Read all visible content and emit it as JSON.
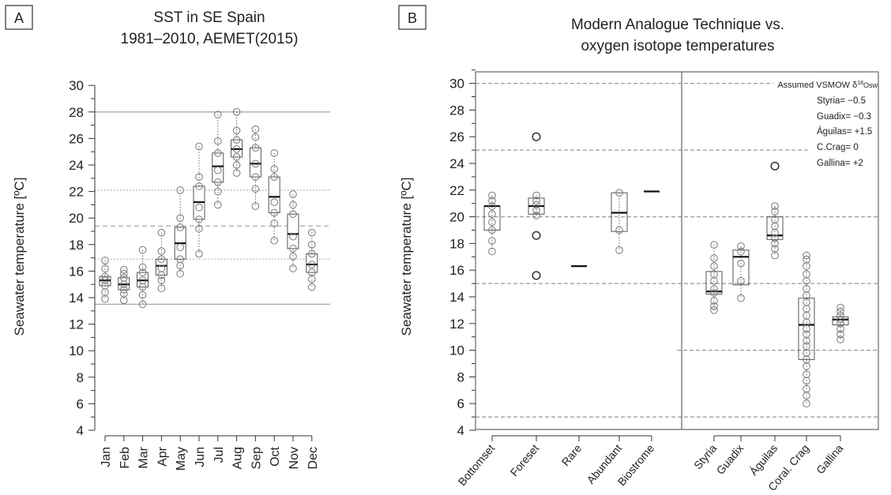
{
  "panels": {
    "a": {
      "label": "A"
    },
    "b": {
      "label": "B"
    }
  },
  "chart_data": [
    {
      "type": "box",
      "title": "SST in SE Spain",
      "subtitle": "1981–2010, AEMET(2015)",
      "ylabel": "Seawater temperature [ºC]",
      "ylim": [
        4,
        30
      ],
      "yticks": [
        "4",
        "6",
        "8",
        "10",
        "12",
        "14",
        "16",
        "18",
        "20",
        "22",
        "24",
        "26",
        "28",
        "30"
      ],
      "categories": [
        "Jan",
        "Feb",
        "Mar",
        "Apr",
        "May",
        "Jun",
        "Jul",
        "Aug",
        "Sep",
        "Oct",
        "Nov",
        "Dec"
      ],
      "reference_lines": [
        {
          "y": 13.5,
          "style": "solid"
        },
        {
          "y": 16.9,
          "style": "dotted"
        },
        {
          "y": 19.4,
          "style": "dashed"
        },
        {
          "y": 22.1,
          "style": "dotted"
        },
        {
          "y": 28.0,
          "style": "solid"
        }
      ],
      "boxes": [
        {
          "q1": 14.9,
          "median": 15.3,
          "q3": 15.6,
          "min": 13.9,
          "max": 16.8,
          "points": [
            13.9,
            14.4,
            14.9,
            15.3,
            15.6,
            16.2,
            16.8
          ]
        },
        {
          "q1": 14.6,
          "median": 15.0,
          "q3": 15.5,
          "min": 13.8,
          "max": 16.1,
          "points": [
            13.8,
            14.3,
            14.6,
            15.0,
            15.5,
            15.8,
            16.1
          ]
        },
        {
          "q1": 14.8,
          "median": 15.3,
          "q3": 15.9,
          "min": 13.5,
          "max": 17.6,
          "points": [
            13.5,
            14.2,
            14.8,
            15.3,
            15.9,
            16.3,
            17.6
          ]
        },
        {
          "q1": 15.7,
          "median": 16.4,
          "q3": 16.9,
          "min": 14.7,
          "max": 18.9,
          "points": [
            14.7,
            15.3,
            15.7,
            16.2,
            16.9,
            17.5,
            18.9
          ]
        },
        {
          "q1": 16.9,
          "median": 18.1,
          "q3": 19.3,
          "min": 15.8,
          "max": 22.1,
          "points": [
            15.8,
            16.4,
            16.9,
            17.8,
            19.3,
            20.0,
            22.1
          ]
        },
        {
          "q1": 19.9,
          "median": 21.2,
          "q3": 22.4,
          "min": 17.3,
          "max": 25.4,
          "points": [
            17.3,
            19.2,
            19.9,
            20.8,
            22.4,
            23.1,
            25.4
          ]
        },
        {
          "q1": 22.7,
          "median": 23.9,
          "q3": 24.9,
          "min": 21.0,
          "max": 27.8,
          "points": [
            21.0,
            22.0,
            22.7,
            23.6,
            24.9,
            25.8,
            27.8
          ]
        },
        {
          "q1": 24.6,
          "median": 25.2,
          "q3": 25.9,
          "min": 23.4,
          "max": 28.0,
          "points": [
            23.4,
            24.0,
            24.6,
            25.2,
            25.9,
            26.6,
            28.0
          ]
        },
        {
          "q1": 23.1,
          "median": 24.1,
          "q3": 25.3,
          "min": 20.9,
          "max": 26.7,
          "points": [
            20.9,
            22.2,
            23.1,
            24.1,
            25.3,
            26.1,
            26.7
          ]
        },
        {
          "q1": 20.4,
          "median": 21.6,
          "q3": 23.1,
          "min": 18.3,
          "max": 24.9,
          "points": [
            18.3,
            19.6,
            20.4,
            21.2,
            23.1,
            23.7,
            24.9
          ]
        },
        {
          "q1": 17.7,
          "median": 18.8,
          "q3": 20.3,
          "min": 16.2,
          "max": 21.8,
          "points": [
            16.2,
            17.1,
            17.7,
            18.6,
            20.3,
            21.0,
            21.8
          ]
        },
        {
          "q1": 15.9,
          "median": 16.5,
          "q3": 17.3,
          "min": 14.8,
          "max": 18.9,
          "points": [
            14.8,
            15.4,
            15.9,
            16.5,
            17.3,
            18.0,
            18.9
          ]
        }
      ]
    },
    {
      "type": "box",
      "title": "Modern Analogue Technique vs.",
      "subtitle": "oxygen isotope temperatures",
      "ylabel": "Seawater temperature [ºC]",
      "ylim": [
        4,
        31
      ],
      "yticks": [
        "4",
        "6",
        "8",
        "10",
        "12",
        "14",
        "16",
        "18",
        "20",
        "22",
        "24",
        "26",
        "28",
        "30"
      ],
      "categories": [
        "Bottomset",
        "Foreset",
        "Rare",
        "Abundant",
        "Biostrome",
        "Styria",
        "Guadix",
        "Águilas",
        "Coral. Crag",
        "Gallina"
      ],
      "reference_lines": [
        {
          "y": 5,
          "style": "dashed",
          "x_from": 0,
          "x_to": 1
        },
        {
          "y": 10,
          "style": "dashed",
          "x_from": 0.5,
          "x_to": 1
        },
        {
          "y": 15,
          "style": "dashed",
          "x_from": 0,
          "x_to": 1
        },
        {
          "y": 20,
          "style": "dashed",
          "x_from": 0,
          "x_to": 1
        },
        {
          "y": 25,
          "style": "dashed",
          "x_from": 0,
          "x_to": 0.825
        },
        {
          "y": 30,
          "style": "dashed",
          "x_from": 0,
          "x_to": 0.74
        }
      ],
      "divider_after_index": 4,
      "boxes": [
        {
          "q1": 19.0,
          "median": 20.8,
          "q3": 20.8,
          "min": 17.4,
          "max": 21.6,
          "points": [
            17.4,
            18.2,
            19.0,
            19.6,
            20.2,
            20.8,
            21.2,
            21.6
          ],
          "outliers": []
        },
        {
          "q1": 20.2,
          "median": 20.8,
          "q3": 21.4,
          "min": 20.0,
          "max": 21.6,
          "points": [
            20.1,
            20.5,
            20.9,
            21.2,
            21.6
          ],
          "outliers": [
            26.0,
            18.6,
            15.6
          ]
        },
        {
          "q1": 16.3,
          "median": 16.3,
          "q3": 16.3,
          "min": 16.3,
          "max": 16.3,
          "points": [],
          "outliers": []
        },
        {
          "q1": 18.9,
          "median": 20.3,
          "q3": 21.8,
          "min": 17.5,
          "max": 21.8,
          "points": [
            17.5,
            19.0,
            21.8
          ],
          "outliers": []
        },
        {
          "q1": 21.9,
          "median": 21.9,
          "q3": 21.9,
          "min": 21.9,
          "max": 21.9,
          "points": [],
          "outliers": []
        },
        {
          "q1": 14.2,
          "median": 14.4,
          "q3": 15.9,
          "min": 13.0,
          "max": 17.9,
          "points": [
            13.0,
            13.3,
            13.7,
            14.3,
            14.6,
            15.2,
            15.7,
            16.3,
            16.9,
            17.9
          ],
          "outliers": []
        },
        {
          "q1": 14.9,
          "median": 17.0,
          "q3": 17.5,
          "min": 13.9,
          "max": 17.8,
          "points": [
            13.9,
            15.2,
            16.5,
            17.4,
            17.8
          ],
          "outliers": []
        },
        {
          "q1": 18.3,
          "median": 18.6,
          "q3": 20.0,
          "min": 17.1,
          "max": 20.8,
          "points": [
            17.1,
            17.6,
            18.0,
            18.4,
            18.8,
            19.3,
            19.8,
            20.4,
            20.8
          ],
          "outliers": [
            23.8
          ]
        },
        {
          "q1": 9.3,
          "median": 11.9,
          "q3": 13.9,
          "min": 6.0,
          "max": 17.1,
          "points": [
            6.0,
            6.6,
            7.1,
            7.7,
            8.2,
            8.8,
            9.3,
            9.8,
            10.3,
            10.7,
            11.2,
            11.6,
            12.1,
            12.6,
            13.1,
            13.6,
            14.1,
            14.6,
            15.2,
            15.7,
            16.3,
            16.8,
            17.1
          ],
          "outliers": []
        },
        {
          "q1": 11.9,
          "median": 12.3,
          "q3": 12.5,
          "min": 10.8,
          "max": 13.2,
          "points": [
            10.8,
            11.2,
            11.6,
            12.0,
            12.3,
            12.6,
            12.9,
            13.2
          ],
          "outliers": []
        }
      ],
      "annotation": {
        "heading": "Assumed VSMOW δ18Osw",
        "heading_prefix": "Assumed VSMOW δ",
        "heading_sup": "18",
        "heading_suffix": "Osw",
        "entries": [
          "Styria= −0.5",
          "Guadix= −0.3",
          "Águilas= +1.5",
          "C.Crag= 0",
          "Gallina= +2"
        ]
      }
    }
  ]
}
